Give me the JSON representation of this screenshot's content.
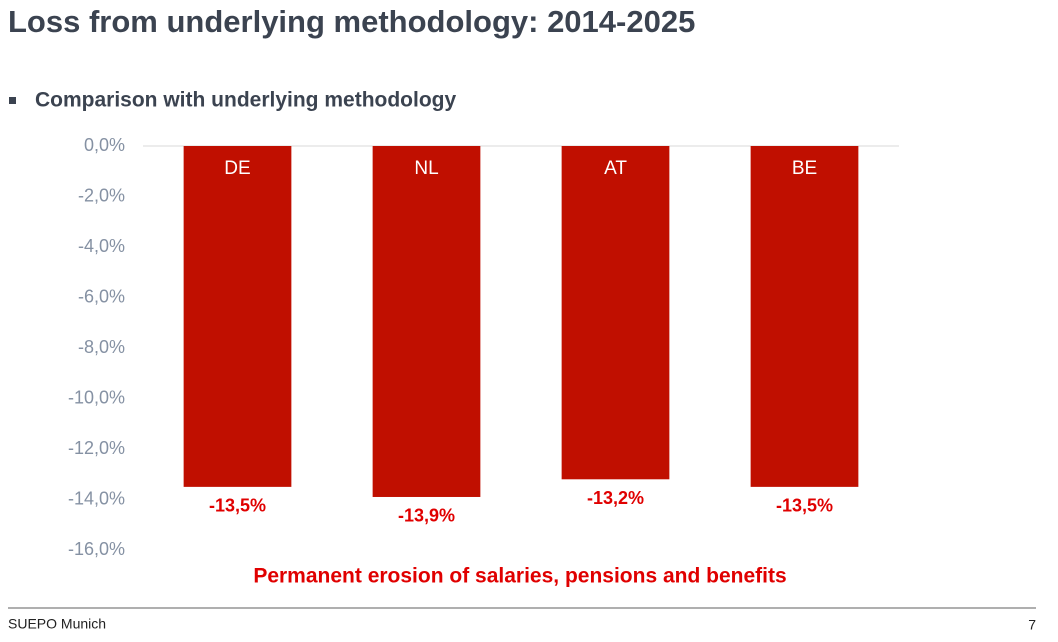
{
  "chart_data": {
    "type": "bar",
    "title": "Loss from underlying methodology: 2014-2025",
    "subtitle": "Comparison with underlying methodology",
    "annotation": "Permanent erosion of salaries, pensions and benefits",
    "categories": [
      "DE",
      "NL",
      "AT",
      "BE"
    ],
    "values": [
      -13.5,
      -13.9,
      -13.2,
      -13.5
    ],
    "value_labels": [
      "-13,5%",
      "-13,9%",
      "-13,2%",
      "-13,5%"
    ],
    "color": "#c00f00",
    "ylim": [
      -16,
      0
    ],
    "yticks": [
      {
        "value": 0,
        "label": "0,0%"
      },
      {
        "value": -2,
        "label": "-2,0%"
      },
      {
        "value": -4,
        "label": "-4,0%"
      },
      {
        "value": -6,
        "label": "-6,0%"
      },
      {
        "value": -8,
        "label": "-8,0%"
      },
      {
        "value": -10,
        "label": "-10,0%"
      },
      {
        "value": -12,
        "label": "-12,0%"
      },
      {
        "value": -14,
        "label": "-14,0%"
      },
      {
        "value": -16,
        "label": "-16,0%"
      }
    ],
    "grid": false
  },
  "footer": {
    "left": "SUEPO Munich",
    "page": "7"
  }
}
